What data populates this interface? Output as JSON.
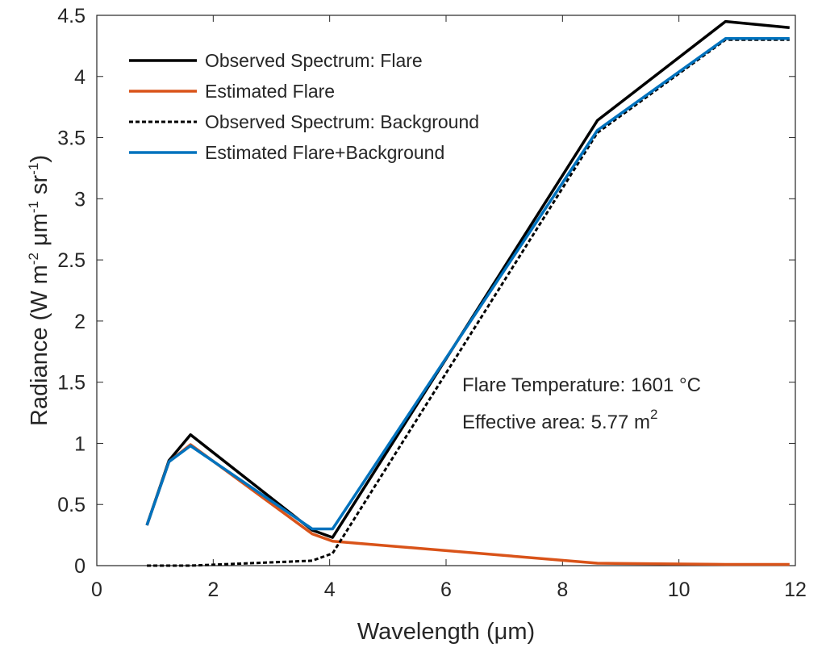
{
  "chart_data": {
    "type": "line",
    "xlabel": "Wavelength (μm)",
    "ylabel": {
      "prefix": "Radiance (W m",
      "sup1": "-2",
      "mid": " μm",
      "sup2": "-1",
      "mid2": " sr",
      "sup3": "-1",
      "suffix": ")"
    },
    "xlim": [
      0,
      12
    ],
    "ylim": [
      0,
      4.5
    ],
    "xticks": [
      "0",
      "2",
      "4",
      "6",
      "8",
      "10",
      "12"
    ],
    "yticks": [
      "0",
      "0.5",
      "1",
      "1.5",
      "2",
      "2.5",
      "3",
      "3.5",
      "4",
      "4.5"
    ],
    "grid": false,
    "legend_position": "top-left",
    "series": [
      {
        "name": "Observed Spectrum: Flare",
        "color": "#000000",
        "dash": "solid",
        "x": [
          0.86,
          1.24,
          1.61,
          3.7,
          4.05,
          8.6,
          10.8,
          11.9
        ],
        "y": [
          0.33,
          0.86,
          1.07,
          0.29,
          0.23,
          3.64,
          4.45,
          4.4
        ]
      },
      {
        "name": "Estimated Flare",
        "color": "#d95319",
        "dash": "solid",
        "x": [
          0.86,
          1.24,
          1.61,
          3.7,
          4.05,
          8.6,
          10.8,
          11.9
        ],
        "y": [
          0.33,
          0.85,
          0.99,
          0.26,
          0.2,
          0.02,
          0.01,
          0.01
        ]
      },
      {
        "name": "Observed Spectrum: Background",
        "color": "#000000",
        "dash": "dashed",
        "x": [
          0.86,
          1.24,
          1.61,
          3.7,
          4.05,
          8.6,
          10.8,
          11.9
        ],
        "y": [
          0.0,
          0.0,
          0.0,
          0.04,
          0.1,
          3.54,
          4.3,
          4.3
        ]
      },
      {
        "name": "Estimated Flare+Background",
        "color": "#0072bd",
        "dash": "solid",
        "x": [
          0.86,
          1.24,
          1.61,
          3.7,
          4.05,
          8.6,
          10.8,
          11.9
        ],
        "y": [
          0.33,
          0.85,
          0.98,
          0.3,
          0.3,
          3.56,
          4.31,
          4.31
        ]
      }
    ],
    "annotations": {
      "temperature_text": "Flare Temperature:  1601 °C",
      "area_text": "Effective area:  5.77 m",
      "area_sup": "2"
    }
  }
}
